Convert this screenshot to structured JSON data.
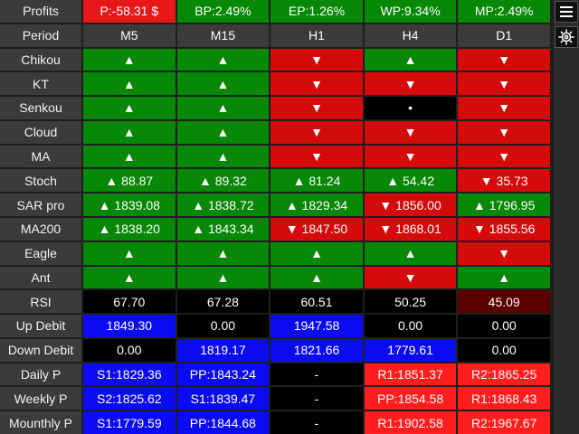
{
  "columns": [
    "M5",
    "M15",
    "H1",
    "H4",
    "D1"
  ],
  "symbols": {
    "up": "▲",
    "down": "▼",
    "neutral": "•"
  },
  "colors": {
    "green": "#078807",
    "red": "#d50a0a",
    "bright_red": "#ff1d1d",
    "dark_red": "#5a0000",
    "blue": "#0b0bf2",
    "black": "#000000",
    "gray": "#3b3b3b"
  },
  "rows": [
    {
      "label": "Profits",
      "cells": [
        {
          "text": "P:-58.31 $",
          "bg": "hdr-red"
        },
        {
          "text": "BP:2.49%",
          "bg": "g"
        },
        {
          "text": "EP:1.26%",
          "bg": "g"
        },
        {
          "text": "WP:9.34%",
          "bg": "g"
        },
        {
          "text": "MP:2.49%",
          "bg": "g"
        }
      ]
    },
    {
      "label": "Period",
      "cells": [
        {
          "text": "M5",
          "bg": "gray"
        },
        {
          "text": "M15",
          "bg": "gray"
        },
        {
          "text": "H1",
          "bg": "gray"
        },
        {
          "text": "H4",
          "bg": "gray"
        },
        {
          "text": "D1",
          "bg": "gray"
        }
      ]
    },
    {
      "label": "Chikou",
      "cells": [
        {
          "text": "▲",
          "bg": "g"
        },
        {
          "text": "▲",
          "bg": "g"
        },
        {
          "text": "▼",
          "bg": "r"
        },
        {
          "text": "▲",
          "bg": "g"
        },
        {
          "text": "▼",
          "bg": "r"
        }
      ]
    },
    {
      "label": "KT",
      "cells": [
        {
          "text": "▲",
          "bg": "g"
        },
        {
          "text": "▲",
          "bg": "g"
        },
        {
          "text": "▼",
          "bg": "r"
        },
        {
          "text": "▼",
          "bg": "r"
        },
        {
          "text": "▼",
          "bg": "r"
        }
      ]
    },
    {
      "label": "Senkou",
      "cells": [
        {
          "text": "▲",
          "bg": "g"
        },
        {
          "text": "▲",
          "bg": "g"
        },
        {
          "text": "▼",
          "bg": "r"
        },
        {
          "text": "•",
          "bg": "k"
        },
        {
          "text": "▼",
          "bg": "r"
        }
      ]
    },
    {
      "label": "Cloud",
      "cells": [
        {
          "text": "▲",
          "bg": "g"
        },
        {
          "text": "▲",
          "bg": "g"
        },
        {
          "text": "▼",
          "bg": "r"
        },
        {
          "text": "▼",
          "bg": "r"
        },
        {
          "text": "▼",
          "bg": "r"
        }
      ]
    },
    {
      "label": "MA",
      "cells": [
        {
          "text": "▲",
          "bg": "g"
        },
        {
          "text": "▲",
          "bg": "g"
        },
        {
          "text": "▼",
          "bg": "r"
        },
        {
          "text": "▼",
          "bg": "r"
        },
        {
          "text": "▼",
          "bg": "r"
        }
      ]
    },
    {
      "label": "Stoch",
      "cells": [
        {
          "text": "▲ 88.87",
          "bg": "g"
        },
        {
          "text": "▲ 89.32",
          "bg": "g"
        },
        {
          "text": "▲ 81.24",
          "bg": "g"
        },
        {
          "text": "▲ 54.42",
          "bg": "g"
        },
        {
          "text": "▼ 35.73",
          "bg": "r"
        }
      ]
    },
    {
      "label": "SAR pro",
      "cells": [
        {
          "text": "▲ 1839.08",
          "bg": "g"
        },
        {
          "text": "▲ 1838.72",
          "bg": "g"
        },
        {
          "text": "▲ 1829.34",
          "bg": "g"
        },
        {
          "text": "▼ 1856.00",
          "bg": "r"
        },
        {
          "text": "▲ 1796.95",
          "bg": "g"
        }
      ]
    },
    {
      "label": "MA200",
      "cells": [
        {
          "text": "▲ 1838.20",
          "bg": "g"
        },
        {
          "text": "▲ 1843.34",
          "bg": "g"
        },
        {
          "text": "▼ 1847.50",
          "bg": "r"
        },
        {
          "text": "▼ 1868.01",
          "bg": "r"
        },
        {
          "text": "▼ 1855.56",
          "bg": "r"
        }
      ]
    },
    {
      "label": "Eagle",
      "cells": [
        {
          "text": "▲",
          "bg": "g"
        },
        {
          "text": "▲",
          "bg": "g"
        },
        {
          "text": "▲",
          "bg": "g"
        },
        {
          "text": "▲",
          "bg": "g"
        },
        {
          "text": "▼",
          "bg": "r"
        }
      ]
    },
    {
      "label": "Ant",
      "cells": [
        {
          "text": "▲",
          "bg": "g"
        },
        {
          "text": "▲",
          "bg": "g"
        },
        {
          "text": "▲",
          "bg": "g"
        },
        {
          "text": "▼",
          "bg": "r"
        },
        {
          "text": "▲",
          "bg": "g"
        }
      ]
    },
    {
      "label": "RSI",
      "cells": [
        {
          "text": "67.70",
          "bg": "k"
        },
        {
          "text": "67.28",
          "bg": "k"
        },
        {
          "text": "60.51",
          "bg": "k"
        },
        {
          "text": "50.25",
          "bg": "k"
        },
        {
          "text": "45.09",
          "bg": "dred"
        }
      ]
    },
    {
      "label": "Up Debit",
      "cells": [
        {
          "text": "1849.30",
          "bg": "blue"
        },
        {
          "text": "0.00",
          "bg": "k"
        },
        {
          "text": "1947.58",
          "bg": "blue"
        },
        {
          "text": "0.00",
          "bg": "k"
        },
        {
          "text": "0.00",
          "bg": "k"
        }
      ]
    },
    {
      "label": "Down Debit",
      "cells": [
        {
          "text": "0.00",
          "bg": "k"
        },
        {
          "text": "1819.17",
          "bg": "blue"
        },
        {
          "text": "1821.66",
          "bg": "blue"
        },
        {
          "text": "1779.61",
          "bg": "blue"
        },
        {
          "text": "0.00",
          "bg": "k"
        }
      ]
    },
    {
      "label": "Daily P",
      "cells": [
        {
          "text": "S1:1829.36",
          "bg": "blue"
        },
        {
          "text": "PP:1843.24",
          "bg": "blue"
        },
        {
          "text": "-",
          "bg": "k"
        },
        {
          "text": "R1:1851.37",
          "bg": "red"
        },
        {
          "text": "R2:1865.25",
          "bg": "red"
        }
      ]
    },
    {
      "label": "Weekly P",
      "cells": [
        {
          "text": "S2:1825.62",
          "bg": "blue"
        },
        {
          "text": "S1:1839.47",
          "bg": "blue"
        },
        {
          "text": "-",
          "bg": "k"
        },
        {
          "text": "PP:1854.58",
          "bg": "red"
        },
        {
          "text": "R1:1868.43",
          "bg": "red"
        }
      ]
    },
    {
      "label": "Mounthly P",
      "cells": [
        {
          "text": "S1:1779.59",
          "bg": "blue"
        },
        {
          "text": "PP:1844.68",
          "bg": "blue"
        },
        {
          "text": "-",
          "bg": "k"
        },
        {
          "text": "R1:1902.58",
          "bg": "red"
        },
        {
          "text": "R2:1967.67",
          "bg": "red"
        }
      ]
    }
  ],
  "sidebar": {
    "buttons": [
      {
        "icon": "menu-icon"
      },
      {
        "icon": "settings-gear-icon"
      }
    ]
  }
}
